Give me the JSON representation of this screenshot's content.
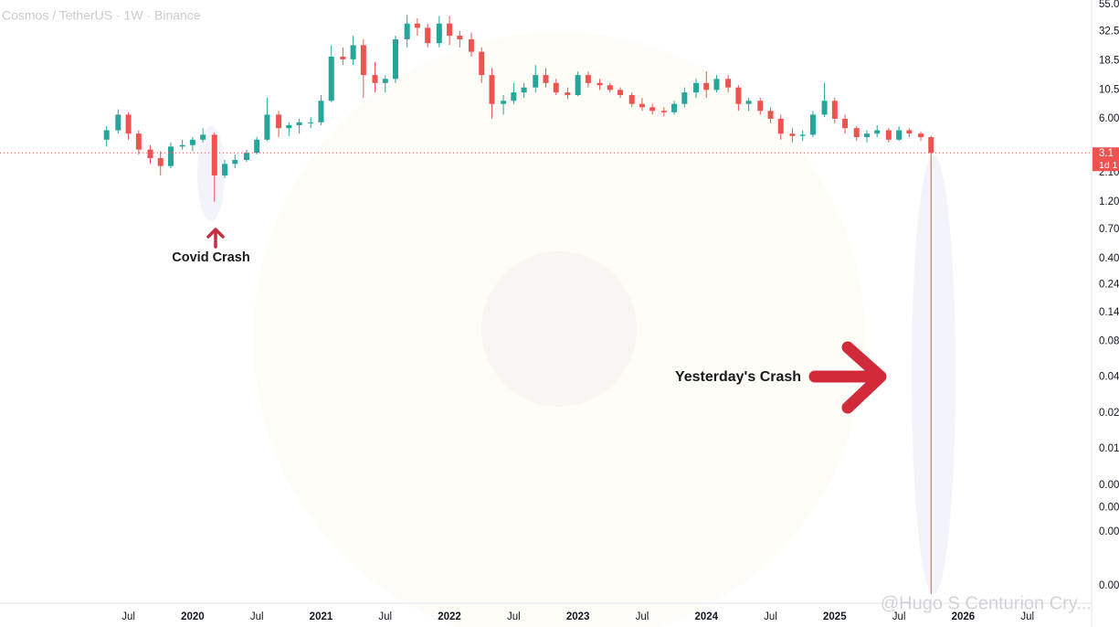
{
  "chart_data": {
    "type": "candlestick",
    "title": "Cosmos / TetherUS · 1W · Binance",
    "x": [
      2019.33,
      2019.42,
      2019.5,
      2019.58,
      2019.67,
      2019.75,
      2019.83,
      2019.92,
      2020,
      2020.08,
      2020.17,
      2020.25,
      2020.33,
      2020.42,
      2020.5,
      2020.58,
      2020.67,
      2020.75,
      2020.83,
      2020.92,
      2021,
      2021.08,
      2021.17,
      2021.25,
      2021.33,
      2021.42,
      2021.5,
      2021.58,
      2021.67,
      2021.75,
      2021.83,
      2021.92,
      2022,
      2022.08,
      2022.17,
      2022.25,
      2022.33,
      2022.42,
      2022.5,
      2022.58,
      2022.67,
      2022.75,
      2022.83,
      2022.92,
      2023,
      2023.08,
      2023.17,
      2023.25,
      2023.33,
      2023.42,
      2023.5,
      2023.58,
      2023.67,
      2023.75,
      2023.83,
      2023.92,
      2024,
      2024.08,
      2024.17,
      2024.25,
      2024.33,
      2024.42,
      2024.5,
      2024.58,
      2024.67,
      2024.75,
      2024.83,
      2024.92,
      2025,
      2025.08,
      2025.17,
      2025.25,
      2025.33,
      2025.42,
      2025.5,
      2025.58,
      2025.67,
      2025.75
    ],
    "open": [
      4.0,
      4.8,
      6.5,
      4.5,
      3.3,
      2.8,
      2.4,
      3.5,
      3.6,
      4.0,
      4.4,
      2.0,
      2.5,
      2.7,
      3.1,
      4.0,
      6.5,
      5.0,
      5.3,
      5.6,
      5.6,
      8.5,
      20,
      19,
      25,
      14,
      12,
      13,
      28,
      38,
      35,
      26,
      38,
      30,
      28,
      22,
      14,
      8,
      8.5,
      10,
      11,
      14,
      12,
      10,
      9.5,
      14,
      12,
      11.5,
      10.5,
      9.5,
      8,
      7.5,
      7,
      6.8,
      8,
      10,
      12,
      10.5,
      13,
      11,
      8,
      8.5,
      7,
      6,
      4.5,
      4.3,
      4.4,
      6.5,
      8.5,
      6,
      5,
      4.2,
      4.5,
      4.8,
      4,
      4.8,
      4.5,
      4.2
    ],
    "high": [
      5.2,
      7.2,
      6.8,
      4.8,
      3.6,
      3.2,
      3.8,
      4.0,
      4.2,
      5.0,
      4.6,
      2.7,
      3.0,
      3.3,
      4.2,
      9.0,
      7.0,
      5.6,
      6.0,
      6.2,
      9.5,
      25,
      24,
      30,
      28,
      18,
      14,
      30,
      45,
      42,
      38,
      44,
      44,
      33,
      32,
      24,
      16,
      9.5,
      12,
      12,
      17,
      16,
      13,
      11,
      15,
      15,
      13,
      12,
      11,
      10,
      9,
      8,
      7.5,
      8.5,
      11,
      13,
      15,
      14,
      14,
      11.5,
      9,
      9,
      7.5,
      6.5,
      5,
      4.8,
      7,
      12,
      9,
      6.5,
      5.2,
      4.8,
      5.3,
      5,
      5.2,
      5.0,
      4.7,
      4.3
    ],
    "low": [
      3.5,
      4.5,
      4.0,
      3.0,
      2.5,
      2.0,
      2.3,
      3.3,
      3.2,
      3.8,
      1.2,
      1.9,
      2.3,
      2.6,
      3.0,
      3.9,
      4.2,
      4.3,
      4.5,
      5.0,
      5.3,
      8.3,
      17,
      17,
      9,
      10,
      10,
      12,
      24,
      30,
      24,
      24,
      25,
      24,
      20,
      12,
      6,
      6.5,
      8,
      9,
      10,
      11,
      9.5,
      8.8,
      9.3,
      11,
      10.5,
      10,
      9,
      7.5,
      7,
      6.5,
      6.3,
      6.5,
      7.5,
      9,
      9,
      10,
      10,
      7,
      7,
      6.5,
      5.5,
      4,
      3.8,
      3.9,
      4.2,
      6.2,
      5.5,
      4.5,
      3.9,
      3.8,
      4.2,
      3.8,
      3.9,
      4.2,
      3.9,
      0.0006
    ],
    "close": [
      4.8,
      6.5,
      4.5,
      3.3,
      2.8,
      2.4,
      3.5,
      3.6,
      4.0,
      4.4,
      2.0,
      2.5,
      2.7,
      3.1,
      4.0,
      6.5,
      5.0,
      5.3,
      5.6,
      5.6,
      8.5,
      20,
      19,
      25,
      14,
      12,
      13,
      28,
      38,
      35,
      26,
      38,
      30,
      28,
      22,
      14,
      8,
      8.5,
      10,
      11,
      14,
      12,
      10,
      9.5,
      14,
      12,
      11.5,
      10.5,
      9.5,
      8,
      7.5,
      7,
      6.8,
      8,
      10,
      12,
      10.5,
      13,
      11,
      8,
      8.5,
      7,
      6,
      4.5,
      4.3,
      4.4,
      6.5,
      8.5,
      6,
      5,
      4.2,
      4.5,
      4.8,
      4,
      4.8,
      4.5,
      4.2,
      3.1
    ],
    "up_color": "#26a69a",
    "down_color": "#ef5350",
    "log_scale": true,
    "ylim": [
      0.0005,
      60
    ],
    "yticks": [
      {
        "value": 55,
        "label": "55.0"
      },
      32.5,
      18.5,
      10.5,
      {
        "value": 6,
        "label": "6.00"
      },
      {
        "value": 2.1,
        "label": "2.10"
      },
      {
        "value": 1.2,
        "label": "1.20"
      },
      {
        "value": 0.7,
        "label": "0.70"
      },
      {
        "value": 0.4,
        "label": "0.40"
      },
      0.24,
      0.14,
      0.08,
      0.04,
      0.02,
      0.01,
      {
        "value": 0.0049,
        "label": "0.00"
      },
      {
        "value": 0.0032,
        "label": "0.00"
      },
      {
        "value": 0.002,
        "label": "0.00"
      },
      {
        "value": 0.0007,
        "label": "0.00"
      }
    ],
    "xlim": [
      2018.5,
      2027.0
    ],
    "xticks": [
      {
        "value": 2019.5,
        "label": "Jul"
      },
      2020,
      {
        "value": 2020.5,
        "label": "Jul"
      },
      2021,
      {
        "value": 2021.5,
        "label": "Jul"
      },
      2022,
      {
        "value": 2022.5,
        "label": "Jul"
      },
      2023,
      {
        "value": 2023.5,
        "label": "Jul"
      },
      2024,
      {
        "value": 2024.5,
        "label": "Jul"
      },
      2025,
      {
        "value": 2025.5,
        "label": "Jul"
      },
      2026,
      {
        "value": 2026.5,
        "label": "Jul"
      }
    ],
    "grid": false,
    "price_label": "3.1",
    "countdown_label": "1d 1",
    "annotations": [
      "Covid Crash",
      "Yesterday's Crash"
    ],
    "watermark": "@Hugo S Centurion Cry..."
  }
}
